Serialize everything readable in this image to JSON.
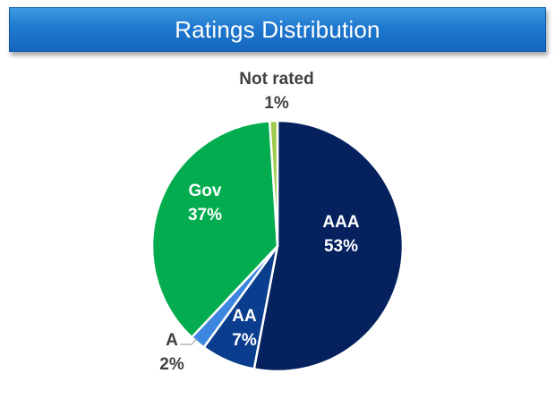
{
  "title": "Ratings Distribution",
  "colors": {
    "AAA": "#05215e",
    "AA": "#0b3d8f",
    "A": "#3d86e0",
    "Gov": "#03ad4f",
    "Not rated": "#9fca4a"
  },
  "chart_data": {
    "type": "pie",
    "title": "Ratings Distribution",
    "categories": [
      "AAA",
      "AA",
      "A",
      "Gov",
      "Not rated"
    ],
    "values": [
      53,
      7,
      2,
      37,
      1
    ],
    "labels": [
      "53%",
      "7%",
      "2%",
      "37%",
      "1%"
    ],
    "legend": "none"
  }
}
